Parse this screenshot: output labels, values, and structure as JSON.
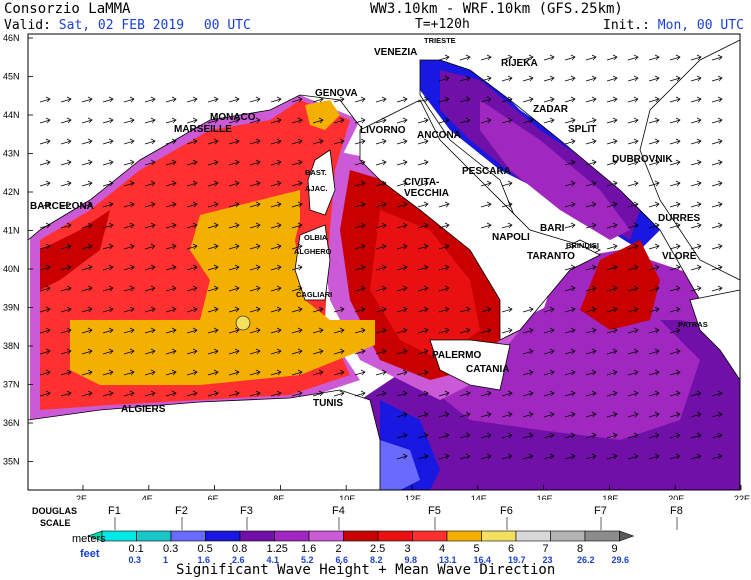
{
  "header": {
    "org": "Consorzio LaMMA",
    "valid_label": "Valid:",
    "valid_value": "Sat, 02 FEB 2019",
    "valid_time": "00 UTC",
    "model": "WW3.10km - WRF.10km (GFS.25km)",
    "lead": "T=+120h",
    "init_label": "Init.:",
    "init_value": "Mon, 00 UTC"
  },
  "map": {
    "lat_labels": [
      "46N",
      "45N",
      "44N",
      "43N",
      "42N",
      "41N",
      "40N",
      "39N",
      "38N",
      "37N",
      "36N",
      "35N"
    ],
    "lon_labels": [
      "2E",
      "4E",
      "6E",
      "8E",
      "10E",
      "12E",
      "14E",
      "16E",
      "18E",
      "20E",
      "22E"
    ],
    "cities": [
      {
        "name": "TRIESTE",
        "small": true
      },
      {
        "name": "VENEZIA"
      },
      {
        "name": "RIJEKA"
      },
      {
        "name": "GENOVA"
      },
      {
        "name": "MONACO"
      },
      {
        "name": "MARSEILLE"
      },
      {
        "name": "LIVORNO"
      },
      {
        "name": "ZADAR"
      },
      {
        "name": "ANCONA"
      },
      {
        "name": "SPLIT"
      },
      {
        "name": "DUBROVNIK"
      },
      {
        "name": "BAST.",
        "small": true
      },
      {
        "name": "AJAC.",
        "small": true
      },
      {
        "name": "PESCARA"
      },
      {
        "name": "CIVITA-"
      },
      {
        "name": "VECCHIA"
      },
      {
        "name": "BARCELONA"
      },
      {
        "name": "DURRES"
      },
      {
        "name": "BARI"
      },
      {
        "name": "OLBIA",
        "small": true
      },
      {
        "name": "NAPOLI"
      },
      {
        "name": "BRINDISI",
        "small": true
      },
      {
        "name": "ALGHERO",
        "small": true
      },
      {
        "name": "TARANTO"
      },
      {
        "name": "VLORE"
      },
      {
        "name": "CAGLIARI",
        "small": true
      },
      {
        "name": "PATRAS",
        "small": true
      },
      {
        "name": "PALERMO"
      },
      {
        "name": "CATANIA"
      },
      {
        "name": "TUNIS"
      },
      {
        "name": "ALGIERS"
      }
    ]
  },
  "legend": {
    "douglas_label": "DOUGLAS",
    "scale_label": "SCALE",
    "douglas": [
      "F1",
      "F2",
      "F3",
      "F4",
      "F5",
      "F6",
      "F7",
      "F8"
    ],
    "meters_label": "meters",
    "meters": [
      "0.1",
      "0.3",
      "0.5",
      "0.8",
      "1.25",
      "1.6",
      "2",
      "2.5",
      "3",
      "4",
      "5",
      "6",
      "7",
      "8",
      "9"
    ],
    "feet_label": "feet",
    "feet": [
      "0.3",
      "1",
      "1.6",
      "2.6",
      "4.1",
      "5.2",
      "6.6",
      "8.2",
      "9.8",
      "13.1",
      "16.4",
      "19.7",
      "23",
      "26.2",
      "29.6"
    ],
    "colors": [
      "#00d9a8",
      "#00e8e8",
      "#18c8c8",
      "#6a6aff",
      "#1818e0",
      "#7010a8",
      "#a028c0",
      "#cc5ad6",
      "#c80000",
      "#e81010",
      "#ff3030",
      "#f4b000",
      "#f4e060",
      "#d8d8d8",
      "#b4b4b4",
      "#8c8c8c",
      "#5a5a5a"
    ],
    "title": "Significant Wave Height + Mean Wave Direction"
  }
}
